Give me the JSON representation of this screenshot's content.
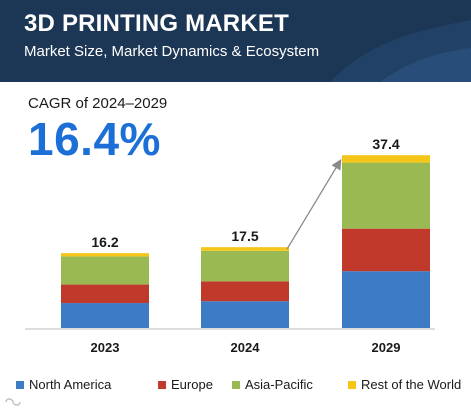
{
  "header": {
    "title": "3D PRINTING MARKET",
    "subtitle": "Market Size, Market Dynamics & Ecosystem"
  },
  "cagr": {
    "label": "CAGR of 2024–2029",
    "value": "16.4%"
  },
  "chart_data": {
    "type": "bar",
    "stacked": true,
    "categories": [
      "2023",
      "2024",
      "2029"
    ],
    "totals": [
      "16.2",
      "17.5",
      "37.4"
    ],
    "series": [
      {
        "name": "North America",
        "color": "#3d7bc4",
        "values": [
          5.4,
          5.8,
          12.3
        ]
      },
      {
        "name": "Europe",
        "color": "#c0392b",
        "values": [
          4.0,
          4.3,
          9.2
        ]
      },
      {
        "name": "Asia-Pacific",
        "color": "#9ab953",
        "values": [
          6.1,
          6.6,
          14.3
        ]
      },
      {
        "name": "Rest of the World",
        "color": "#f5c518",
        "values": [
          0.7,
          0.8,
          1.6
        ]
      }
    ],
    "ylim": [
      0,
      40
    ],
    "grid": false,
    "legend": "bottom",
    "annotation": "arrow from 2024 bar to 2029 bar"
  }
}
